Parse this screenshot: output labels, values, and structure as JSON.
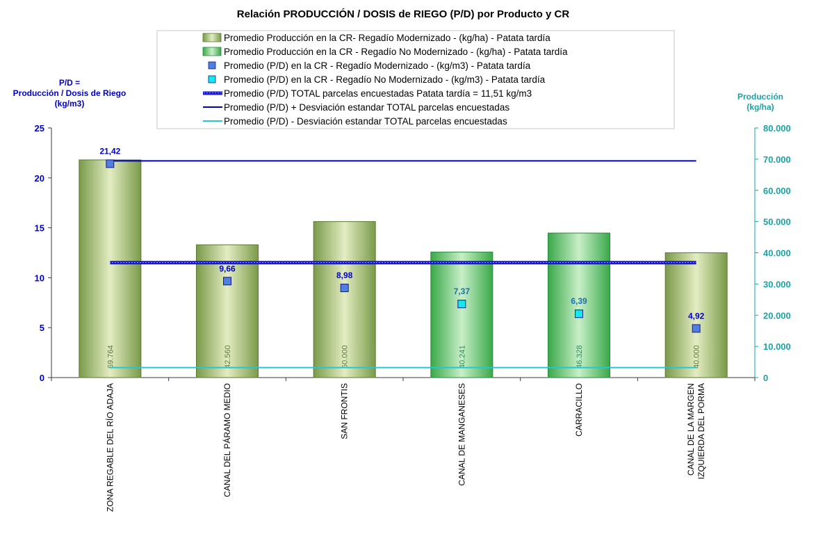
{
  "chart_data": {
    "type": "bar",
    "title": "Relación PRODUCCIÓN / DOSIS de RIEGO (P/D) por Producto y CR",
    "ylabel_left": [
      "P/D =",
      "Producción / Dosis  de Riego",
      "(kg/m3)"
    ],
    "ylabel_right": [
      "Producción",
      "(kg/ha)"
    ],
    "ylim_left": [
      0,
      25
    ],
    "ylim_right": [
      0,
      80000
    ],
    "yticks_left": [
      "0",
      "5",
      "10",
      "15",
      "20",
      "25"
    ],
    "yticks_right": [
      "0",
      "10.000",
      "20.000",
      "30.000",
      "40.000",
      "50.000",
      "60.000",
      "70.000",
      "80.000"
    ],
    "categories": [
      [
        "ZONA REGABLE DEL RÍO ADAJA"
      ],
      [
        "CANAL DEL PÁRAMO MEDIO"
      ],
      [
        "SAN FRONTIS"
      ],
      [
        "CANAL DE MANGANESES"
      ],
      [
        "CARRACILLO"
      ],
      [
        "CANAL DE LA MARGEN",
        "IZQUIERDA DEL PORMA"
      ]
    ],
    "production_values": [
      69764,
      42560,
      50000,
      40241,
      46328,
      40000
    ],
    "production_labels": [
      "69.764",
      "42.560",
      "50.000",
      "40.241",
      "46.328",
      "40.000"
    ],
    "regadio": [
      "modernizado",
      "modernizado",
      "modernizado",
      "no_modernizado",
      "no_modernizado",
      "modernizado"
    ],
    "pd_values": [
      21.42,
      9.66,
      8.98,
      7.37,
      6.39,
      4.92
    ],
    "pd_labels": [
      "21,42",
      "9,66",
      "8,98",
      "7,37",
      "6,39",
      "4,92"
    ],
    "pd_total": 11.51,
    "pd_plus_std": 21.7,
    "pd_minus_std": 1.0,
    "legend_position": "top-center",
    "grid": false,
    "legend": [
      {
        "kind": "bar_m",
        "label": "Promedio Producción en la CR- Regadío Modernizado -  (kg/ha) - Patata tardía"
      },
      {
        "kind": "bar_nm",
        "label": "Promedio Producción en la CR - Regadío No Modernizado -  (kg/ha) - Patata tardía"
      },
      {
        "kind": "marker_m",
        "label": "Promedio (P/D) en la CR - Regadío Modernizado - (kg/m3) - Patata tardía"
      },
      {
        "kind": "marker_nm",
        "label": "Promedio (P/D) en la CR - Regadío No Modernizado - (kg/m3) - Patata tardía"
      },
      {
        "kind": "line_total",
        "label": "Promedio (P/D) TOTAL parcelas encuestadas Patata tardía = 11,51 kg/m3"
      },
      {
        "kind": "line_plus",
        "label": "Promedio (P/D) + Desviación estandar TOTAL parcelas encuestadas"
      },
      {
        "kind": "line_minus",
        "label": "Promedio (P/D) - Desviación estandar TOTAL parcelas encuestadas"
      }
    ],
    "colors": {
      "bar_m_edge": "#7a9a4a",
      "bar_m_center": "#e3ecc2",
      "bar_nm_edge": "#3aa84a",
      "bar_nm_center": "#c8efc8",
      "marker_m": "#4f7fdf",
      "marker_nm": "#11e8ef",
      "line_total": "#1a1acc",
      "line_plus": "#0000bb",
      "line_minus": "#22c8d8",
      "axis_left": "#0000cc",
      "axis_right": "#1aa3a3"
    }
  }
}
